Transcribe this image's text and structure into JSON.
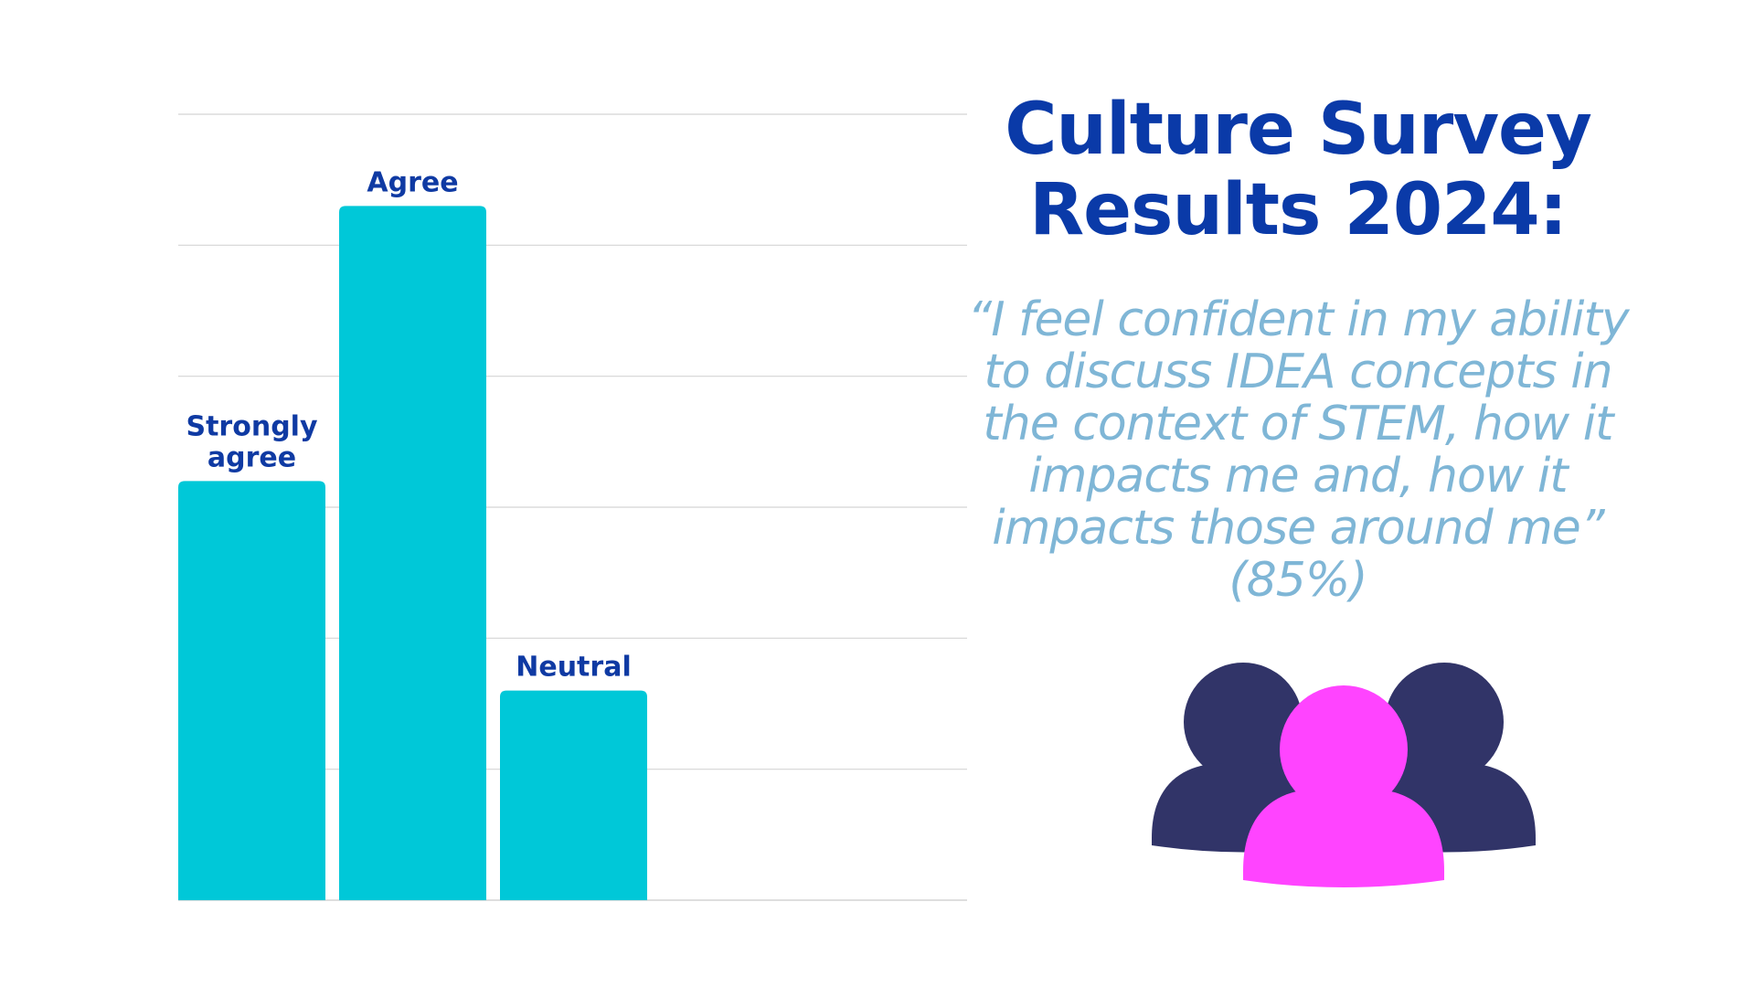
{
  "colors": {
    "bar": "#00c8d8",
    "grid": "#d4d4d4",
    "label": "#0f3aa3",
    "title": "#0a3aa8",
    "quote": "#7fb6d6",
    "person_back": "#313468",
    "person_front": "#ff44ff"
  },
  "title": {
    "line1": "Culture Survey",
    "line2": "Results 2024:"
  },
  "quote": {
    "lines": [
      "“I feel confident in my ability",
      "to discuss IDEA concepts in",
      "the context of STEM, how it",
      "impacts me and, how it",
      "impacts those around me”",
      "(85%)"
    ]
  },
  "icon": "people-group-icon",
  "chart_data": {
    "type": "bar",
    "categories": [
      "Strongly agree",
      "Agree",
      "Neutral"
    ],
    "category_label_lines": [
      [
        "Strongly",
        "agree"
      ],
      [
        "Agree"
      ],
      [
        "Neutral"
      ]
    ],
    "values": [
      32,
      53,
      16
    ],
    "ylim": [
      0,
      60
    ],
    "y_tick_step": 10,
    "grid": true,
    "show_tick_labels": false,
    "title": "",
    "xlabel": "",
    "ylabel": ""
  }
}
